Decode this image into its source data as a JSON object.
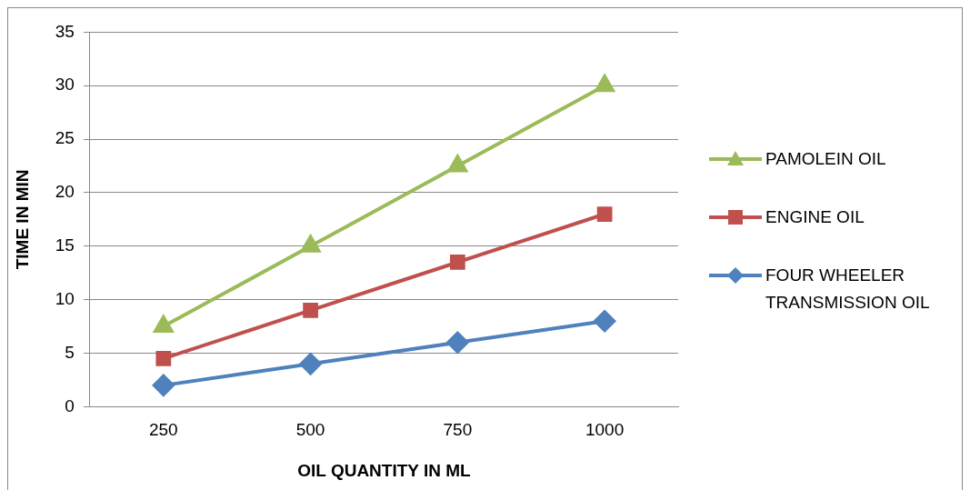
{
  "chart_data": {
    "type": "line",
    "xlabel": "OIL QUANTITY IN ML",
    "ylabel": "TIME IN MIN",
    "categories": [
      "250",
      "500",
      "750",
      "1000"
    ],
    "ylim": [
      0,
      35
    ],
    "yticks": [
      0,
      5,
      10,
      15,
      20,
      25,
      30,
      35
    ],
    "grid": "y",
    "legend": "right",
    "line_style": "solid",
    "series": [
      {
        "name": "PAMOLEIN OIL",
        "color": "#9bbb59",
        "marker": "triangle",
        "values": [
          7.5,
          15,
          22.5,
          30
        ]
      },
      {
        "name": "ENGINE OIL",
        "color": "#c0504d",
        "marker": "square",
        "values": [
          4.5,
          9,
          13.5,
          18
        ]
      },
      {
        "name": "FOUR WHEELER TRANSMISSION OIL",
        "color": "#4f81bd",
        "marker": "diamond",
        "values": [
          2,
          4,
          6,
          8
        ]
      }
    ]
  }
}
